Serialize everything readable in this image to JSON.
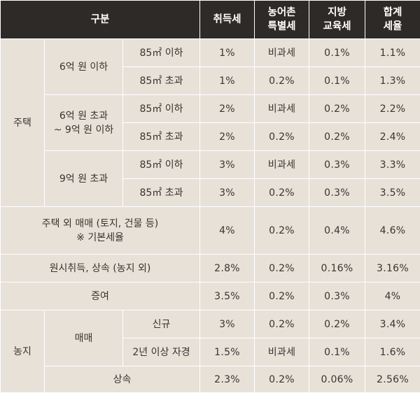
{
  "header": {
    "category": "구분",
    "acquisition_tax": "취득세",
    "rural_tax": "농어촌\n특별세",
    "education_tax": "지방\n교육세",
    "total_rate": "합계\n세율"
  },
  "groups": {
    "housing": "주택",
    "under_600m": "6억 원 이하",
    "600m_to_900m": "6억 원 초과\n~ 9억 원 이하",
    "over_900m": "9억 원 초과",
    "non_housing": "주택 외 매매 (토지, 건물 등)\n※ 기본세율",
    "original_inherit": "원시취득, 상속 (농지 외)",
    "gift": "증여",
    "farmland": "농지",
    "farm_sale": "매매",
    "farm_inherit": "상속"
  },
  "rows": [
    {
      "sub": "85㎡ 이하",
      "acq": "1%",
      "rural": "비과세",
      "edu": "0.1%",
      "total": "1.1%"
    },
    {
      "sub": "85㎡ 초과",
      "acq": "1%",
      "rural": "0.2%",
      "edu": "0.1%",
      "total": "1.3%"
    },
    {
      "sub": "85㎡ 이하",
      "acq": "2%",
      "rural": "비과세",
      "edu": "0.2%",
      "total": "2.2%"
    },
    {
      "sub": "85㎡ 초과",
      "acq": "2%",
      "rural": "0.2%",
      "edu": "0.2%",
      "total": "2.4%"
    },
    {
      "sub": "85㎡ 이하",
      "acq": "3%",
      "rural": "비과세",
      "edu": "0.3%",
      "total": "3.3%"
    },
    {
      "sub": "85㎡ 초과",
      "acq": "3%",
      "rural": "0.2%",
      "edu": "0.3%",
      "total": "3.5%"
    },
    {
      "acq": "4%",
      "rural": "0.2%",
      "edu": "0.4%",
      "total": "4.6%"
    },
    {
      "acq": "2.8%",
      "rural": "0.2%",
      "edu": "0.16%",
      "total": "3.16%"
    },
    {
      "acq": "3.5%",
      "rural": "0.2%",
      "edu": "0.3%",
      "total": "4%"
    },
    {
      "sub": "신규",
      "acq": "3%",
      "rural": "0.2%",
      "edu": "0.2%",
      "total": "3.4%"
    },
    {
      "sub": "2년 이상 자경",
      "acq": "1.5%",
      "rural": "비과세",
      "edu": "0.1%",
      "total": "1.6%"
    },
    {
      "acq": "2.3%",
      "rural": "0.2%",
      "edu": "0.06%",
      "total": "2.56%"
    }
  ]
}
